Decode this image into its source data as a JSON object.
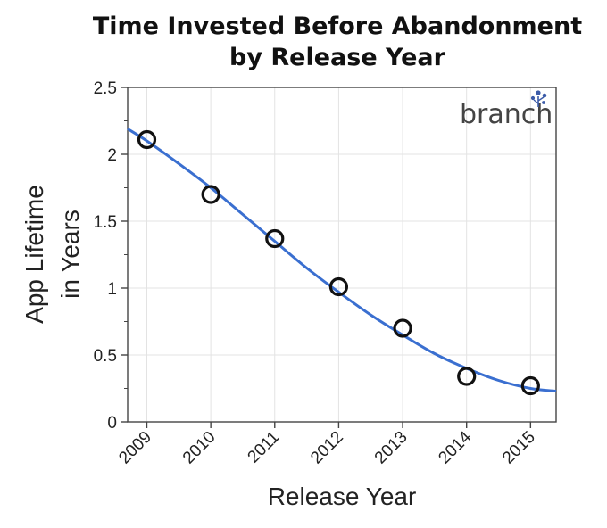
{
  "chart_data": {
    "type": "scatter",
    "title_line1": "Time Invested Before Abandonment",
    "title_line2": "by Release Year",
    "xlabel": "Release Year",
    "ylabel_line1": "App Lifetime",
    "ylabel_line2": "in Years",
    "logo": "branch",
    "x": [
      2009,
      2010,
      2011,
      2012,
      2013,
      2014,
      2015
    ],
    "y": [
      2.11,
      1.7,
      1.37,
      1.01,
      0.7,
      0.34,
      0.27
    ],
    "x_ticks": [
      "2009",
      "2010",
      "2011",
      "2012",
      "2013",
      "2014",
      "2015"
    ],
    "y_ticks": [
      "0",
      "0.5",
      "1",
      "1.5",
      "2",
      "2.5"
    ],
    "xlim": [
      2008.7,
      2015.4
    ],
    "ylim": [
      0,
      2.5
    ],
    "grid": true,
    "fit_line": {
      "x": [
        2008.7,
        2009,
        2009.5,
        2010,
        2010.5,
        2011,
        2011.5,
        2012,
        2012.5,
        2013,
        2013.5,
        2014,
        2014.5,
        2015,
        2015.4
      ],
      "y": [
        2.19,
        2.1,
        1.93,
        1.75,
        1.55,
        1.35,
        1.15,
        0.97,
        0.8,
        0.65,
        0.51,
        0.4,
        0.31,
        0.25,
        0.23
      ]
    },
    "colors": {
      "fit_line": "#3a6fd0",
      "marker": "#111111",
      "grid": "#e3e3e3",
      "logo_accent": "#3b5ba8"
    }
  }
}
